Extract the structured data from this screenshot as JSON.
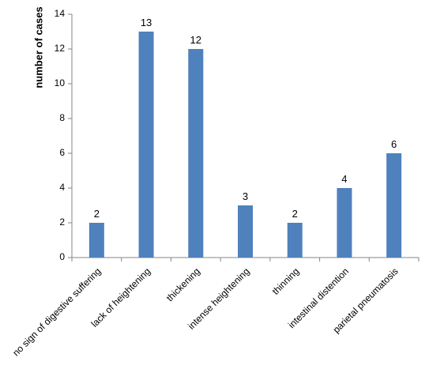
{
  "chart_data": {
    "type": "bar",
    "categories": [
      "no sign of digestive suffering",
      "lack of heightening",
      "thickening",
      "intense heightening",
      "thinning",
      "intestinal distention",
      "parietal pneumatosis"
    ],
    "values": [
      2,
      13,
      12,
      3,
      2,
      4,
      6
    ],
    "data_labels": [
      "2",
      "13",
      "12",
      "3",
      "2",
      "4",
      "6"
    ],
    "title": "",
    "xlabel": "",
    "ylabel": "number of cases",
    "ylim": [
      0,
      14
    ],
    "yticks": [
      "0",
      "2",
      "4",
      "6",
      "8",
      "10",
      "12",
      "14"
    ],
    "grid": false,
    "legend": "none",
    "bar_color": "#4f81bd",
    "axis_color": "#868686"
  }
}
